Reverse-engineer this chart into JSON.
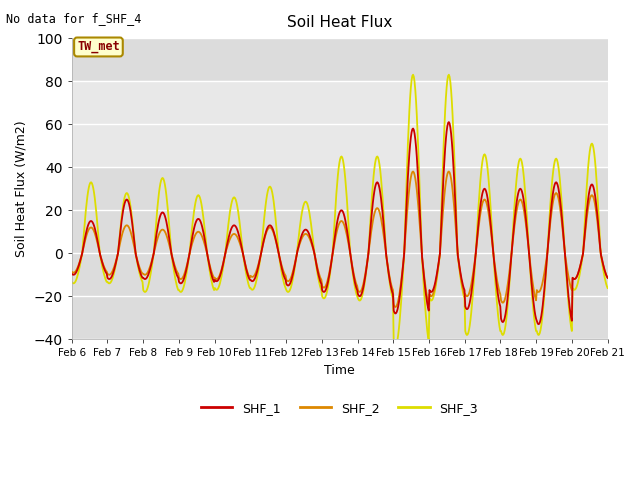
{
  "title": "Soil Heat Flux",
  "note": "No data for f_SHF_4",
  "ylabel": "Soil Heat Flux (W/m2)",
  "xlabel": "Time",
  "ylim": [
    -40,
    100
  ],
  "yticks": [
    -40,
    -20,
    0,
    20,
    40,
    60,
    80,
    100
  ],
  "shaded_band_lo": 40,
  "shaded_band_hi": 80,
  "legend_labels": [
    "SHF_1",
    "SHF_2",
    "SHF_3"
  ],
  "line_colors": [
    "#cc0000",
    "#dd8800",
    "#dddd00"
  ],
  "annotation_text": "TW_met",
  "annotation_fg": "#880000",
  "annotation_bg": "#ffffcc",
  "annotation_border": "#aa8800",
  "bg_color": "#ffffff",
  "plot_bg_lo": "#dcdcdc",
  "plot_bg_hi": "#e8e8e8",
  "xtick_labels": [
    "Feb 6",
    "Feb 7",
    "Feb 8",
    "Feb 9",
    "Feb 10",
    "Feb 11",
    "Feb 12",
    "Feb 13",
    "Feb 14",
    "Feb 15",
    "Feb 16",
    "Feb 17",
    "Feb 18",
    "Feb 19",
    "Feb 20",
    "Feb 21"
  ]
}
